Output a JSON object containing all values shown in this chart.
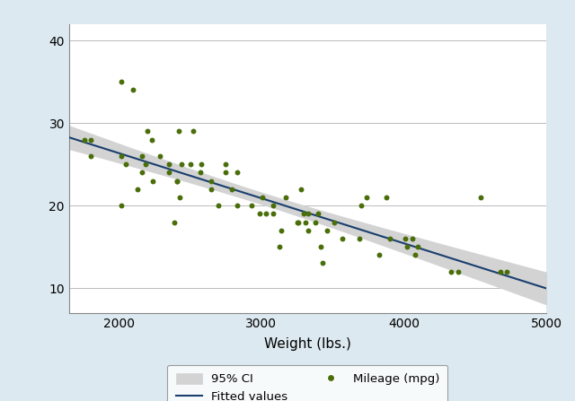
{
  "scatter_x": [
    1760,
    1800,
    1800,
    2020,
    2020,
    2020,
    2050,
    2100,
    2130,
    2160,
    2160,
    2190,
    2200,
    2230,
    2240,
    2290,
    2350,
    2350,
    2390,
    2410,
    2410,
    2420,
    2430,
    2440,
    2500,
    2520,
    2570,
    2580,
    2650,
    2650,
    2700,
    2750,
    2750,
    2790,
    2830,
    2830,
    2930,
    2990,
    3010,
    3030,
    3080,
    3080,
    3130,
    3140,
    3170,
    3250,
    3260,
    3280,
    3300,
    3310,
    3330,
    3330,
    3380,
    3400,
    3420,
    3430,
    3460,
    3510,
    3570,
    3690,
    3700,
    3740,
    3830,
    3880,
    3900,
    4010,
    4020,
    4060,
    4080,
    4100,
    4330,
    4380,
    4540,
    4680,
    4720
  ],
  "scatter_y": [
    28,
    28,
    26,
    35,
    26,
    20,
    25,
    34,
    22,
    24,
    26,
    25,
    29,
    28,
    23,
    26,
    25,
    24,
    18,
    23,
    23,
    29,
    21,
    25,
    25,
    29,
    24,
    25,
    22,
    23,
    20,
    25,
    24,
    22,
    24,
    20,
    20,
    19,
    21,
    19,
    19,
    20,
    15,
    17,
    21,
    18,
    18,
    22,
    19,
    18,
    19,
    17,
    18,
    19,
    15,
    13,
    17,
    18,
    16,
    16,
    20,
    21,
    14,
    21,
    16,
    16,
    15,
    16,
    14,
    15,
    12,
    12,
    21,
    12,
    12
  ],
  "dot_color": "#4a6e0a",
  "line_color": "#1a3f6e",
  "ci_color": "#d3d3d3",
  "background_color": "#dce9f0",
  "plot_bg_color": "#ffffff",
  "xlabel": "Weight (lbs.)",
  "xlim": [
    1650,
    5000
  ],
  "ylim": [
    7,
    42
  ],
  "xticks": [
    2000,
    3000,
    4000,
    5000
  ],
  "yticks": [
    10,
    20,
    30,
    40
  ],
  "legend_labels": [
    "95% CI",
    "Fitted values",
    "Mileage (mpg)"
  ],
  "figsize": [
    6.4,
    4.47
  ],
  "dpi": 100
}
